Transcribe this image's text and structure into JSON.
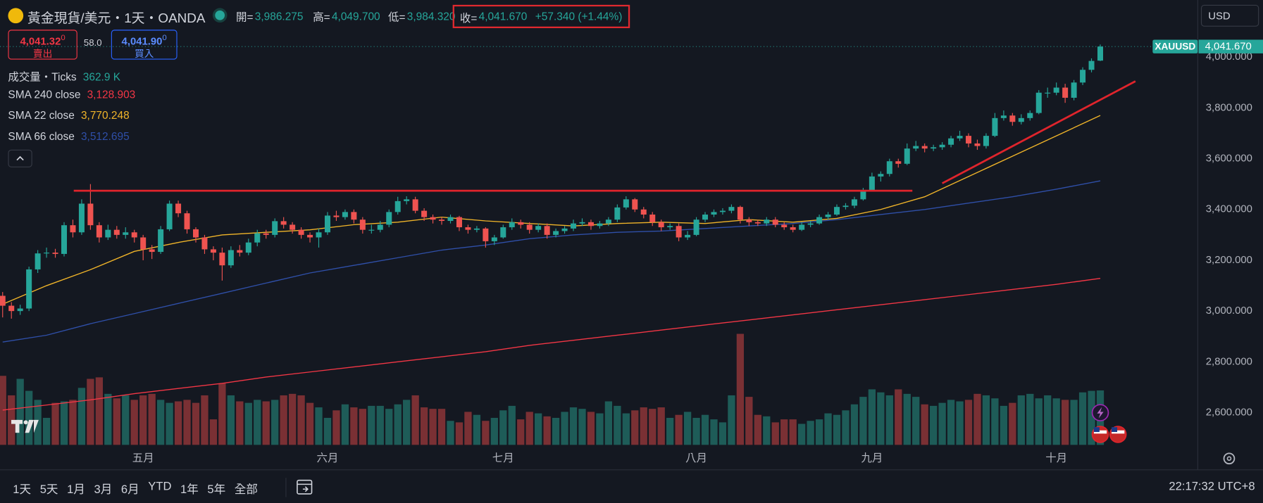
{
  "ui": {
    "header": {
      "symbol": "黃金現貨/美元・1天・OANDA",
      "open_label": "開=",
      "open": "3,986.275",
      "high_label": "高=",
      "high": "4,049.700",
      "low_label": "低=",
      "low": "3,984.320",
      "close_label": "收=",
      "close": "4,041.670",
      "change": "+57.340 (+1.44%)"
    },
    "trade": {
      "sell_price": "4,041.32",
      "sell_sup": "0",
      "sell_label": "賣出",
      "spread": "58.0",
      "buy_price": "4,041.90",
      "buy_sup": "0",
      "buy_label": "買入"
    },
    "currency": "USD",
    "ranges": [
      "1天",
      "5天",
      "1月",
      "3月",
      "6月",
      "YTD",
      "1年",
      "5年",
      "全部"
    ],
    "time": "22:17:32 UTC+8"
  },
  "chart_data": {
    "type": "candlestick",
    "symbol": "XAUUSD",
    "last_price": {
      "value": 4041.67,
      "label": "4,041.670",
      "color": "#26a69a"
    },
    "xlim": [
      -0.3,
      136.1
    ],
    "ylim": [
      2378,
      4225
    ],
    "grid": false,
    "xticks": [
      {
        "value": 16,
        "label": "五月"
      },
      {
        "value": 37,
        "label": "六月"
      },
      {
        "value": 57,
        "label": "七月"
      },
      {
        "value": 79,
        "label": "八月"
      },
      {
        "value": 99,
        "label": "九月"
      },
      {
        "value": 120,
        "label": "十月"
      }
    ],
    "yticks": [
      {
        "value": 2600,
        "label": "2,600.000"
      },
      {
        "value": 2800,
        "label": "2,800.000"
      },
      {
        "value": 3000,
        "label": "3,000.000"
      },
      {
        "value": 3200,
        "label": "3,200.000"
      },
      {
        "value": 3400,
        "label": "3,400.000"
      },
      {
        "value": 3600,
        "label": "3,600.000"
      },
      {
        "value": 3800,
        "label": "3,800.000"
      },
      {
        "value": 4000,
        "label": "4,000.000"
      }
    ],
    "candles": {
      "up_color": "#26a69a",
      "down_color": "#ef5350",
      "open": [
        3060,
        3021,
        3000,
        3010,
        3164,
        3227,
        3230,
        3225,
        3338,
        3310,
        3423,
        3338,
        3290,
        3320,
        3300,
        3310,
        3290,
        3243,
        3233,
        3322,
        3423,
        3385,
        3322,
        3290,
        3243,
        3230,
        3180,
        3240,
        3230,
        3270,
        3306,
        3300,
        3354,
        3340,
        3320,
        3300,
        3290,
        3310,
        3376,
        3370,
        3390,
        3360,
        3320,
        3320,
        3340,
        3390,
        3433,
        3440,
        3395,
        3370,
        3360,
        3355,
        3370,
        3330,
        3320,
        3325,
        3275,
        3290,
        3330,
        3350,
        3340,
        3320,
        3335,
        3300,
        3315,
        3325,
        3345,
        3350,
        3335,
        3345,
        3360,
        3408,
        3440,
        3400,
        3380,
        3350,
        3330,
        3335,
        3290,
        3300,
        3360,
        3380,
        3390,
        3395,
        3410,
        3360,
        3350,
        3345,
        3360,
        3340,
        3330,
        3320,
        3340,
        3345,
        3370,
        3380,
        3410,
        3415,
        3440,
        3475,
        3530,
        3540,
        3590,
        3580,
        3640,
        3650,
        3640,
        3645,
        3655,
        3680,
        3690,
        3660,
        3650,
        3690,
        3760,
        3770,
        3745,
        3760,
        3780,
        3860,
        3860,
        3880,
        3840,
        3900,
        3950,
        3986.275
      ],
      "high": [
        3075,
        3035,
        3025,
        3175,
        3240,
        3250,
        3245,
        3350,
        3360,
        3440,
        3500,
        3350,
        3340,
        3335,
        3330,
        3320,
        3300,
        3260,
        3335,
        3435,
        3435,
        3395,
        3330,
        3300,
        3255,
        3250,
        3255,
        3260,
        3285,
        3320,
        3320,
        3365,
        3370,
        3350,
        3330,
        3310,
        3325,
        3390,
        3395,
        3400,
        3400,
        3370,
        3340,
        3355,
        3400,
        3450,
        3452,
        3450,
        3405,
        3380,
        3370,
        3380,
        3375,
        3340,
        3335,
        3330,
        3300,
        3340,
        3365,
        3360,
        3350,
        3345,
        3345,
        3325,
        3335,
        3360,
        3365,
        3360,
        3355,
        3370,
        3420,
        3452,
        3445,
        3410,
        3390,
        3360,
        3345,
        3345,
        3315,
        3370,
        3390,
        3400,
        3405,
        3420,
        3415,
        3370,
        3360,
        3370,
        3370,
        3350,
        3340,
        3350,
        3355,
        3380,
        3390,
        3420,
        3425,
        3450,
        3485,
        3545,
        3550,
        3600,
        3600,
        3660,
        3670,
        3660,
        3655,
        3665,
        3690,
        3710,
        3700,
        3675,
        3700,
        3780,
        3790,
        3780,
        3775,
        3790,
        3870,
        3880,
        3900,
        3895,
        3910,
        3960,
        3995,
        4049.7
      ],
      "low": [
        2975,
        2970,
        2985,
        3000,
        3150,
        3210,
        3210,
        3215,
        3290,
        3300,
        3320,
        3270,
        3280,
        3285,
        3285,
        3270,
        3200,
        3205,
        3225,
        3315,
        3370,
        3305,
        3270,
        3225,
        3200,
        3120,
        3170,
        3215,
        3220,
        3255,
        3285,
        3290,
        3325,
        3305,
        3285,
        3270,
        3250,
        3300,
        3355,
        3360,
        3345,
        3305,
        3305,
        3310,
        3330,
        3380,
        3420,
        3385,
        3355,
        3345,
        3340,
        3345,
        3315,
        3305,
        3310,
        3250,
        3260,
        3285,
        3320,
        3325,
        3305,
        3310,
        3285,
        3290,
        3305,
        3315,
        3335,
        3320,
        3325,
        3335,
        3350,
        3400,
        3390,
        3365,
        3335,
        3315,
        3320,
        3275,
        3280,
        3295,
        3350,
        3370,
        3380,
        3385,
        3345,
        3335,
        3335,
        3335,
        3330,
        3320,
        3310,
        3315,
        3330,
        3340,
        3360,
        3375,
        3400,
        3405,
        3435,
        3470,
        3510,
        3530,
        3565,
        3575,
        3630,
        3625,
        3630,
        3635,
        3645,
        3670,
        3645,
        3635,
        3640,
        3685,
        3750,
        3730,
        3735,
        3750,
        3775,
        3840,
        3850,
        3820,
        3830,
        3890,
        3940,
        3984.32
      ],
      "close": [
        3021,
        3000,
        3010,
        3164,
        3227,
        3230,
        3225,
        3338,
        3310,
        3423,
        3338,
        3290,
        3320,
        3300,
        3310,
        3290,
        3243,
        3233,
        3322,
        3423,
        3385,
        3322,
        3290,
        3243,
        3230,
        3180,
        3240,
        3230,
        3270,
        3306,
        3300,
        3354,
        3340,
        3320,
        3300,
        3290,
        3310,
        3376,
        3370,
        3390,
        3360,
        3320,
        3320,
        3340,
        3390,
        3433,
        3440,
        3395,
        3370,
        3360,
        3355,
        3370,
        3330,
        3320,
        3325,
        3275,
        3290,
        3330,
        3350,
        3340,
        3320,
        3335,
        3300,
        3315,
        3325,
        3345,
        3350,
        3335,
        3345,
        3360,
        3408,
        3440,
        3400,
        3380,
        3350,
        3330,
        3335,
        3290,
        3300,
        3360,
        3380,
        3390,
        3395,
        3410,
        3360,
        3350,
        3345,
        3360,
        3340,
        3330,
        3320,
        3340,
        3345,
        3370,
        3380,
        3410,
        3415,
        3440,
        3475,
        3530,
        3540,
        3590,
        3580,
        3640,
        3650,
        3640,
        3645,
        3655,
        3680,
        3690,
        3660,
        3650,
        3690,
        3760,
        3770,
        3745,
        3760,
        3780,
        3860,
        3860,
        3880,
        3840,
        3900,
        3950,
        3985,
        4041.67
      ]
    },
    "volume": {
      "name": "成交量・Ticks",
      "value_label": "362.9 K",
      "color": "#26a69a",
      "up_color": "#1e5c58",
      "down_color": "#7a3034",
      "values": [
        460,
        330,
        440,
        360,
        300,
        180,
        280,
        290,
        300,
        380,
        440,
        450,
        340,
        310,
        330,
        300,
        330,
        340,
        300,
        280,
        290,
        300,
        280,
        330,
        170,
        410,
        330,
        290,
        280,
        300,
        290,
        300,
        330,
        340,
        330,
        280,
        250,
        180,
        230,
        270,
        250,
        240,
        260,
        260,
        240,
        270,
        300,
        330,
        250,
        240,
        240,
        160,
        150,
        220,
        200,
        160,
        180,
        230,
        260,
        170,
        220,
        210,
        190,
        180,
        220,
        250,
        240,
        220,
        210,
        290,
        260,
        210,
        230,
        250,
        240,
        250,
        180,
        200,
        220,
        180,
        200,
        170,
        150,
        330,
        740,
        320,
        200,
        190,
        150,
        170,
        170,
        140,
        160,
        170,
        210,
        200,
        230,
        270,
        320,
        370,
        350,
        330,
        370,
        340,
        320,
        270,
        260,
        280,
        300,
        290,
        300,
        340,
        330,
        310,
        260,
        280,
        330,
        340,
        310,
        330,
        310,
        300,
        300,
        350,
        360,
        362.9
      ]
    },
    "series": [
      {
        "name": "SMA 240 close",
        "color": "#f23645",
        "value_label": "3,128.903",
        "x": [
          0,
          5,
          10,
          15,
          20,
          25,
          30,
          35,
          40,
          45,
          50,
          55,
          60,
          65,
          70,
          75,
          80,
          85,
          90,
          95,
          100,
          105,
          110,
          115,
          120,
          125
        ],
        "values": [
          2610,
          2630,
          2650,
          2675,
          2695,
          2715,
          2740,
          2760,
          2780,
          2800,
          2820,
          2840,
          2865,
          2885,
          2905,
          2925,
          2945,
          2965,
          2985,
          3005,
          3025,
          3045,
          3065,
          3085,
          3105,
          3128.903
        ]
      },
      {
        "name": "SMA 22 close",
        "color": "#f0b429",
        "value_label": "3,770.248",
        "x": [
          0,
          5,
          10,
          15,
          20,
          25,
          30,
          35,
          40,
          45,
          50,
          55,
          60,
          65,
          70,
          75,
          80,
          85,
          90,
          95,
          100,
          105,
          110,
          115,
          120,
          125
        ],
        "values": [
          3027,
          3100,
          3163,
          3235,
          3270,
          3300,
          3310,
          3320,
          3340,
          3350,
          3370,
          3355,
          3345,
          3335,
          3345,
          3350,
          3345,
          3360,
          3350,
          3365,
          3400,
          3450,
          3530,
          3610,
          3690,
          3770.248
        ]
      },
      {
        "name": "SMA 66 close",
        "color": "#2f4fa8",
        "value_label": "3,512.695",
        "x": [
          0,
          5,
          10,
          15,
          20,
          25,
          30,
          35,
          40,
          45,
          50,
          55,
          60,
          65,
          70,
          75,
          80,
          85,
          90,
          95,
          100,
          105,
          110,
          115,
          120,
          125
        ],
        "values": [
          2878,
          2905,
          2950,
          2990,
          3030,
          3070,
          3110,
          3150,
          3180,
          3210,
          3240,
          3260,
          3285,
          3300,
          3310,
          3315,
          3325,
          3335,
          3345,
          3360,
          3380,
          3400,
          3425,
          3450,
          3480,
          3512.695
        ]
      }
    ],
    "drawings": [
      {
        "color": "#e0242c",
        "x": [
          8.1,
          103.6
        ],
        "y": [
          3474,
          3474
        ]
      },
      {
        "color": "#e0242c",
        "x": [
          107,
          129
        ],
        "y": [
          3503,
          3905
        ]
      }
    ]
  }
}
